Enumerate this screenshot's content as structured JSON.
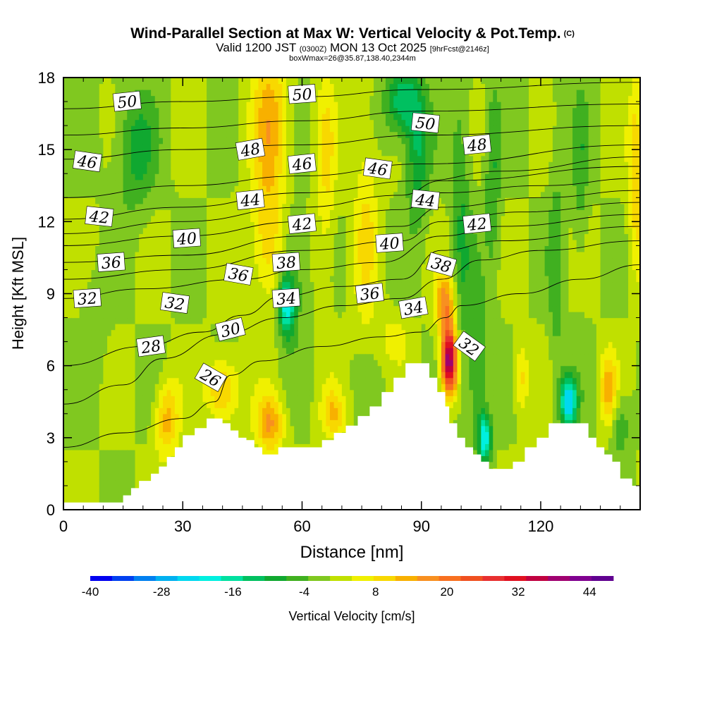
{
  "title": {
    "main": "Wind-Parallel Section at Max W: Vertical Velocity & Pot.Temp.",
    "copyright": "(C)",
    "valid_prefix": "Valid 1200 JST",
    "valid_utc": "(0300Z)",
    "valid_date": "MON 13 Oct 2025",
    "forecast": "[9hrFcst@2146z]",
    "box_info": "boxWmax=26@35.87,138.40,2344m"
  },
  "chart_data": {
    "type": "heatmap",
    "title": "Wind-Parallel Section at Max W: Vertical Velocity & Pot.Temp.",
    "xlabel": "Distance [nm]",
    "ylabel": "Height [Kft MSL]",
    "xlim": [
      0,
      145
    ],
    "ylim": [
      0,
      18
    ],
    "x_ticks": [
      0,
      30,
      60,
      90,
      120
    ],
    "x_tick_labels": [
      "0",
      "30",
      "60",
      "90",
      "120"
    ],
    "y_ticks": [
      0,
      3,
      6,
      9,
      12,
      15,
      18
    ],
    "y_tick_labels": [
      "0",
      "3",
      "6",
      "9",
      "12",
      "15",
      "18"
    ],
    "colorbar": {
      "label": "Vertical Velocity [cm/s]",
      "min": -40,
      "max": 48,
      "step": 4,
      "tick_values": [
        -40,
        -28,
        -16,
        -4,
        8,
        20,
        32,
        44
      ],
      "tick_labels": [
        "-40",
        "-28",
        "-16",
        "-4",
        "8",
        "20",
        "32",
        "44"
      ],
      "colors": [
        "#0000f0",
        "#0040f0",
        "#0080f0",
        "#00b0f0",
        "#00d8f0",
        "#00f0e0",
        "#00e0a0",
        "#00c060",
        "#10a830",
        "#40b020",
        "#80c820",
        "#c0e000",
        "#f0f000",
        "#f8d800",
        "#f8b000",
        "#f89020",
        "#f87020",
        "#f05020",
        "#e83030",
        "#e01020",
        "#c00040",
        "#a00070",
        "#800090",
        "#600090"
      ]
    },
    "terrain": [
      {
        "x": 0,
        "h": 0.3
      },
      {
        "x": 14,
        "h": 0.3
      },
      {
        "x": 15,
        "h": 0.6
      },
      {
        "x": 17,
        "h": 0.9
      },
      {
        "x": 19,
        "h": 1.2
      },
      {
        "x": 22,
        "h": 1.5
      },
      {
        "x": 24,
        "h": 1.8
      },
      {
        "x": 26,
        "h": 2.2
      },
      {
        "x": 28,
        "h": 2.6
      },
      {
        "x": 30,
        "h": 3.1
      },
      {
        "x": 33,
        "h": 3.4
      },
      {
        "x": 36,
        "h": 3.8
      },
      {
        "x": 40,
        "h": 3.6
      },
      {
        "x": 42,
        "h": 3.3
      },
      {
        "x": 44,
        "h": 3.0
      },
      {
        "x": 46,
        "h": 2.9
      },
      {
        "x": 48,
        "h": 2.6
      },
      {
        "x": 50,
        "h": 2.3
      },
      {
        "x": 52,
        "h": 2.3
      },
      {
        "x": 54,
        "h": 2.6
      },
      {
        "x": 58,
        "h": 2.6
      },
      {
        "x": 62,
        "h": 2.6
      },
      {
        "x": 65,
        "h": 2.9
      },
      {
        "x": 68,
        "h": 3.2
      },
      {
        "x": 71,
        "h": 3.5
      },
      {
        "x": 74,
        "h": 3.9
      },
      {
        "x": 77,
        "h": 4.3
      },
      {
        "x": 80,
        "h": 4.9
      },
      {
        "x": 83,
        "h": 5.5
      },
      {
        "x": 86,
        "h": 6.1
      },
      {
        "x": 90,
        "h": 6.1
      },
      {
        "x": 92,
        "h": 5.5
      },
      {
        "x": 94,
        "h": 4.9
      },
      {
        "x": 96,
        "h": 4.3
      },
      {
        "x": 97,
        "h": 3.6
      },
      {
        "x": 99,
        "h": 3.0
      },
      {
        "x": 101,
        "h": 2.6
      },
      {
        "x": 103,
        "h": 2.3
      },
      {
        "x": 105,
        "h": 2.0
      },
      {
        "x": 107,
        "h": 1.7
      },
      {
        "x": 110,
        "h": 1.7
      },
      {
        "x": 113,
        "h": 2.0
      },
      {
        "x": 116,
        "h": 2.6
      },
      {
        "x": 119,
        "h": 3.0
      },
      {
        "x": 122,
        "h": 3.6
      },
      {
        "x": 126,
        "h": 3.6
      },
      {
        "x": 130,
        "h": 3.6
      },
      {
        "x": 132,
        "h": 3.0
      },
      {
        "x": 134,
        "h": 2.6
      },
      {
        "x": 136,
        "h": 2.3
      },
      {
        "x": 138,
        "h": 2.0
      },
      {
        "x": 140,
        "h": 1.3
      },
      {
        "x": 143,
        "h": 1.0
      },
      {
        "x": 145,
        "h": 1.0
      }
    ],
    "w_features": [
      {
        "x": 97,
        "z": 6.2,
        "sx": 2.0,
        "sz": 1.4,
        "w": 45
      },
      {
        "x": 96,
        "z": 8.6,
        "sx": 2.5,
        "sz": 1.2,
        "w": 18
      },
      {
        "x": 52,
        "z": 16,
        "sx": 4.5,
        "sz": 3.5,
        "w": 14
      },
      {
        "x": 51,
        "z": 11,
        "sx": 4.0,
        "sz": 2.5,
        "w": 10
      },
      {
        "x": 66,
        "z": 14,
        "sx": 2.5,
        "sz": 5,
        "w": 8
      },
      {
        "x": 40,
        "z": 5.0,
        "sx": 4.0,
        "sz": 1.3,
        "w": 15
      },
      {
        "x": 26,
        "z": 3.8,
        "sx": 3.0,
        "sz": 1.6,
        "w": 14
      },
      {
        "x": 52,
        "z": 3.6,
        "sx": 3.5,
        "sz": 1.2,
        "w": 16
      },
      {
        "x": 68,
        "z": 4.0,
        "sx": 3.0,
        "sz": 1.0,
        "w": 11
      },
      {
        "x": 76,
        "z": 12,
        "sx": 3.0,
        "sz": 5,
        "w": 8
      },
      {
        "x": 83,
        "z": 7.2,
        "sx": 3.5,
        "sz": 1.0,
        "w": 6
      },
      {
        "x": 144,
        "z": 14,
        "sx": 2.0,
        "sz": 4,
        "w": 12
      },
      {
        "x": 115,
        "z": 5.5,
        "sx": 2.0,
        "sz": 1.5,
        "w": 10
      },
      {
        "x": 137,
        "z": 5.0,
        "sx": 2.0,
        "sz": 1.5,
        "w": 14
      },
      {
        "x": 18,
        "z": 15,
        "sx": 5.0,
        "sz": 2.5,
        "w": -10
      },
      {
        "x": 85,
        "z": 17,
        "sx": 4.0,
        "sz": 1.5,
        "w": -16
      },
      {
        "x": 89,
        "z": 15,
        "sx": 3.0,
        "sz": 3,
        "w": -12
      },
      {
        "x": 104,
        "z": 6.0,
        "sx": 2.5,
        "sz": 3.0,
        "w": -10
      },
      {
        "x": 106,
        "z": 3.0,
        "sx": 1.5,
        "sz": 1.0,
        "w": -24
      },
      {
        "x": 127,
        "z": 4.5,
        "sx": 2.0,
        "sz": 1.0,
        "w": -28
      },
      {
        "x": 56,
        "z": 8.5,
        "sx": 2.0,
        "sz": 1.2,
        "w": -22
      },
      {
        "x": 58,
        "z": 10,
        "sx": 3.0,
        "sz": 2.5,
        "w": -8
      },
      {
        "x": 100,
        "z": 12,
        "sx": 2.5,
        "sz": 6,
        "w": -8
      },
      {
        "x": 108,
        "z": 14,
        "sx": 2.0,
        "sz": 4,
        "w": -8
      },
      {
        "x": 124,
        "z": 10,
        "sx": 2.0,
        "sz": 6,
        "w": -6
      },
      {
        "x": 130,
        "z": 14,
        "sx": 2.0,
        "sz": 4,
        "w": -6
      },
      {
        "x": 140,
        "z": 3.5,
        "sx": 2.5,
        "sz": 1.2,
        "w": -8
      },
      {
        "x": 8,
        "z": 8.0,
        "sx": 3.0,
        "sz": 2.0,
        "w": -4
      }
    ],
    "theta_contours": [
      {
        "value": 26,
        "levels": [
          [
            0,
            2.6
          ],
          [
            15,
            3.2
          ],
          [
            30,
            3.8
          ],
          [
            38,
            4.5
          ],
          [
            42,
            5.6
          ],
          [
            50,
            6.2
          ],
          [
            65,
            6.8
          ],
          [
            80,
            7.2
          ],
          [
            90,
            7.4
          ],
          [
            96,
            8.0
          ],
          [
            100,
            8.5
          ],
          [
            115,
            9.0
          ],
          [
            130,
            9.6
          ],
          [
            145,
            10.2
          ]
        ]
      },
      {
        "value": 28,
        "levels": [
          [
            0,
            4.4
          ],
          [
            15,
            5.2
          ],
          [
            25,
            6.3
          ],
          [
            40,
            7.3
          ],
          [
            55,
            8.0
          ],
          [
            70,
            8.5
          ],
          [
            85,
            8.8
          ],
          [
            95,
            9.6
          ],
          [
            105,
            10.4
          ],
          [
            120,
            10.8
          ],
          [
            145,
            11.2
          ]
        ]
      },
      {
        "value": 30,
        "levels": [
          [
            0,
            6.0
          ],
          [
            20,
            6.8
          ],
          [
            35,
            7.4
          ],
          [
            45,
            8.1
          ],
          [
            55,
            8.9
          ],
          [
            70,
            9.3
          ],
          [
            85,
            9.6
          ],
          [
            95,
            10.8
          ],
          [
            110,
            11.2
          ],
          [
            145,
            11.8
          ]
        ]
      },
      {
        "value": 32,
        "levels": [
          [
            0,
            8.8
          ],
          [
            20,
            9.2
          ],
          [
            45,
            9.6
          ],
          [
            60,
            10.0
          ],
          [
            80,
            10.3
          ],
          [
            95,
            11.4
          ],
          [
            110,
            11.8
          ],
          [
            145,
            12.3
          ]
        ]
      },
      {
        "value": 34,
        "levels": [
          [
            0,
            9.6
          ],
          [
            30,
            10.0
          ],
          [
            60,
            10.8
          ],
          [
            85,
            11.2
          ],
          [
            95,
            12.0
          ],
          [
            115,
            12.4
          ],
          [
            145,
            12.8
          ]
        ]
      },
      {
        "value": 36,
        "levels": [
          [
            0,
            10.3
          ],
          [
            30,
            10.6
          ],
          [
            60,
            11.4
          ],
          [
            85,
            11.8
          ],
          [
            95,
            12.6
          ],
          [
            120,
            13.0
          ],
          [
            145,
            13.3
          ]
        ]
      },
      {
        "value": 38,
        "levels": [
          [
            0,
            11.0
          ],
          [
            30,
            11.4
          ],
          [
            60,
            12.0
          ],
          [
            85,
            12.5
          ],
          [
            95,
            13.2
          ],
          [
            120,
            13.5
          ],
          [
            145,
            13.8
          ]
        ]
      },
      {
        "value": 40,
        "levels": [
          [
            0,
            11.5
          ],
          [
            30,
            12.0
          ],
          [
            60,
            12.6
          ],
          [
            85,
            13.1
          ],
          [
            95,
            13.7
          ],
          [
            145,
            14.3
          ]
        ]
      },
      {
        "value": 42,
        "levels": [
          [
            0,
            12.1
          ],
          [
            30,
            12.6
          ],
          [
            60,
            13.2
          ],
          [
            90,
            13.7
          ],
          [
            110,
            14.1
          ],
          [
            145,
            14.7
          ]
        ]
      },
      {
        "value": 44,
        "levels": [
          [
            0,
            13.0
          ],
          [
            30,
            13.5
          ],
          [
            60,
            13.9
          ],
          [
            90,
            14.4
          ],
          [
            145,
            15.2
          ]
        ]
      },
      {
        "value": 46,
        "levels": [
          [
            0,
            14.6
          ],
          [
            30,
            15.0
          ],
          [
            60,
            15.2
          ],
          [
            90,
            15.6
          ],
          [
            145,
            16.0
          ]
        ]
      },
      {
        "value": 48,
        "levels": [
          [
            0,
            15.6
          ],
          [
            30,
            15.9
          ],
          [
            60,
            16.2
          ],
          [
            90,
            16.6
          ],
          [
            145,
            16.9
          ]
        ]
      },
      {
        "value": 50,
        "levels": [
          [
            0,
            16.7
          ],
          [
            30,
            17.0
          ],
          [
            60,
            17.2
          ],
          [
            90,
            17.5
          ],
          [
            145,
            17.8
          ]
        ]
      }
    ],
    "contour_labels": [
      {
        "text": "50",
        "x": 16,
        "z": 17.0,
        "rot": -6
      },
      {
        "text": "50",
        "x": 60,
        "z": 17.3,
        "rot": -4
      },
      {
        "text": "50",
        "x": 91,
        "z": 16.1,
        "rot": 6
      },
      {
        "text": "48",
        "x": 47,
        "z": 15.0,
        "rot": -10
      },
      {
        "text": "48",
        "x": 104,
        "z": 15.2,
        "rot": -6
      },
      {
        "text": "46",
        "x": 6,
        "z": 14.5,
        "rot": 8
      },
      {
        "text": "46",
        "x": 60,
        "z": 14.4,
        "rot": -6
      },
      {
        "text": "46",
        "x": 79,
        "z": 14.2,
        "rot": 8
      },
      {
        "text": "44",
        "x": 47,
        "z": 12.9,
        "rot": -6
      },
      {
        "text": "44",
        "x": 91,
        "z": 12.9,
        "rot": 6
      },
      {
        "text": "42",
        "x": 9,
        "z": 12.2,
        "rot": 6
      },
      {
        "text": "42",
        "x": 60,
        "z": 11.9,
        "rot": -6
      },
      {
        "text": "42",
        "x": 104,
        "z": 11.9,
        "rot": -6
      },
      {
        "text": "40",
        "x": 31,
        "z": 11.3,
        "rot": -4
      },
      {
        "text": "40",
        "x": 82,
        "z": 11.1,
        "rot": -4
      },
      {
        "text": "38",
        "x": 56,
        "z": 10.3,
        "rot": -4
      },
      {
        "text": "38",
        "x": 95,
        "z": 10.2,
        "rot": 16
      },
      {
        "text": "36",
        "x": 12,
        "z": 10.3,
        "rot": -4
      },
      {
        "text": "36",
        "x": 44,
        "z": 9.8,
        "rot": 10
      },
      {
        "text": "36",
        "x": 77,
        "z": 9.0,
        "rot": -6
      },
      {
        "text": "34",
        "x": 56,
        "z": 8.8,
        "rot": -4
      },
      {
        "text": "34",
        "x": 88,
        "z": 8.4,
        "rot": -10
      },
      {
        "text": "32",
        "x": 6,
        "z": 8.8,
        "rot": -4
      },
      {
        "text": "32",
        "x": 28,
        "z": 8.6,
        "rot": 8
      },
      {
        "text": "32",
        "x": 102,
        "z": 6.8,
        "rot": 36
      },
      {
        "text": "30",
        "x": 42,
        "z": 7.5,
        "rot": -14
      },
      {
        "text": "28",
        "x": 22,
        "z": 6.8,
        "rot": -8
      },
      {
        "text": "26",
        "x": 37,
        "z": 5.5,
        "rot": 30
      }
    ]
  }
}
